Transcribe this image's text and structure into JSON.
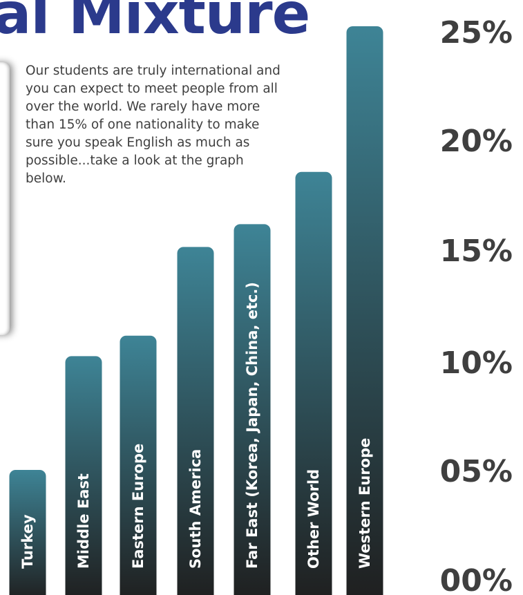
{
  "title": "al Mixture",
  "intro": "Our students are truly international and you can expect to meet people from all over the world.  We rarely have more than 15% of one nationality to make sure you speak English as much as possible...take a look at the graph below.",
  "colors": {
    "title": "#2b3a8c",
    "bar_top": "#3e8496",
    "bar_bottom": "#1f1f1f",
    "text": "#3f3f3f"
  },
  "chart_data": {
    "type": "bar",
    "orientation": "vertical",
    "categories": [
      "Turkey",
      "Middle East",
      "Eastern Europe",
      "South America",
      "Far East (Korea, Japan, China, etc.)",
      "Other World",
      "Western Europe"
    ],
    "values": [
      5.5,
      10.5,
      11.4,
      15.3,
      16.3,
      18.6,
      25.0
    ],
    "ylim": [
      0,
      25
    ],
    "y_ticks": [
      "00%",
      "05%",
      "10%",
      "15%",
      "20%",
      "25%"
    ],
    "y_axis_position": "right",
    "grid": false,
    "legend": "none",
    "bar_labels_rotated": true
  }
}
